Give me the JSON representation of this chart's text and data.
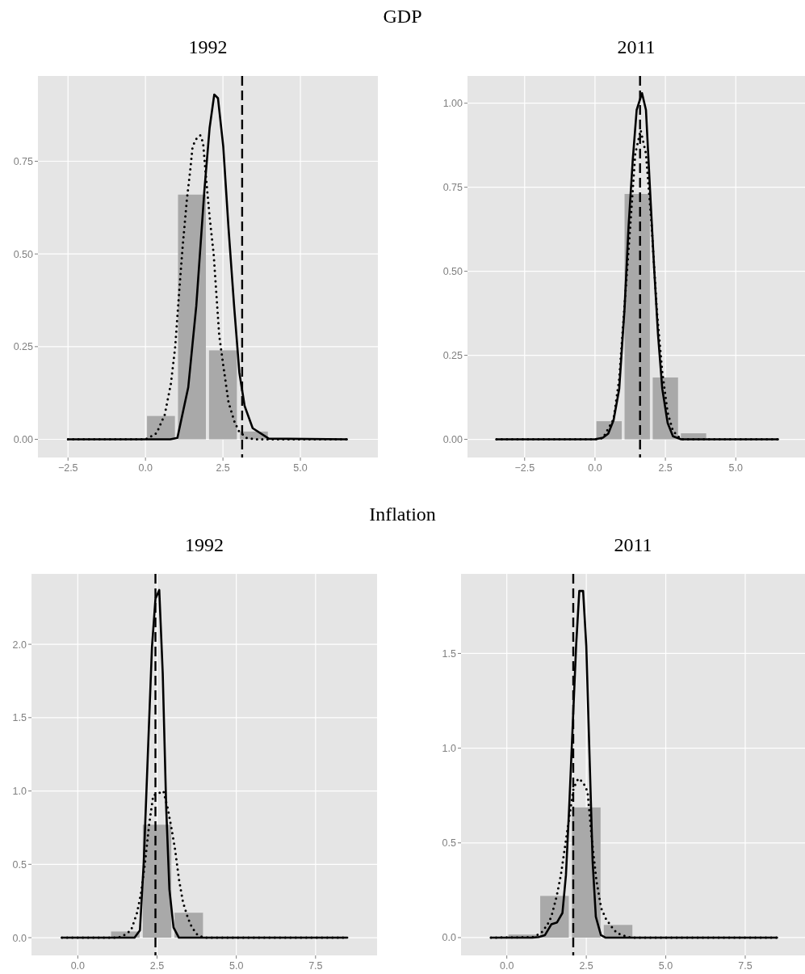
{
  "chart_data": [
    {
      "type": "histogram",
      "title": "1992",
      "annotations": [
        "GDP"
      ],
      "bins": [
        0,
        1,
        2,
        3,
        4
      ],
      "values": [
        0.063,
        0.66,
        0.24,
        0.021
      ],
      "color": "#a9a9a9",
      "xlim": [
        -3.47,
        7.5
      ],
      "ylim": [
        -0.049,
        0.98
      ],
      "xticks": [
        {
          "value": -2.5,
          "label": "−2.5"
        },
        {
          "value": 0,
          "label": "0.0"
        },
        {
          "value": 2.5,
          "label": "2.5"
        },
        {
          "value": 5,
          "label": "5.0"
        }
      ],
      "yticks": [
        {
          "value": 0,
          "label": "0.00"
        },
        {
          "value": 0.25,
          "label": "0.25"
        },
        {
          "value": 0.5,
          "label": "0.50"
        },
        {
          "value": 0.75,
          "label": "0.75"
        }
      ],
      "grid": true,
      "series": [
        {
          "type": "line",
          "color": "#000000",
          "line_style": "solid",
          "x": [
            -2.5,
            0.8,
            1.03,
            1.38,
            1.64,
            1.9,
            2.07,
            2.22,
            2.34,
            2.51,
            2.68,
            2.86,
            3.03,
            3.2,
            3.46,
            3.98,
            6.5
          ],
          "values": [
            0,
            0,
            0.004,
            0.14,
            0.36,
            0.67,
            0.84,
            0.93,
            0.92,
            0.79,
            0.57,
            0.36,
            0.18,
            0.09,
            0.03,
            0.002,
            0
          ]
        },
        {
          "type": "line",
          "color": "#000000",
          "line_style": "dotted",
          "x": [
            -2.5,
            0,
            0.1,
            0.36,
            0.62,
            0.82,
            0.96,
            1.08,
            1.2,
            1.34,
            1.45,
            1.52,
            1.64,
            1.77,
            1.86,
            1.94,
            2.07,
            2.2,
            2.29,
            2.38,
            2.51,
            2.68,
            2.87,
            3.01,
            3.25,
            3.55,
            6.5
          ],
          "values": [
            0,
            0,
            0.004,
            0.017,
            0.066,
            0.15,
            0.25,
            0.39,
            0.52,
            0.65,
            0.73,
            0.79,
            0.81,
            0.82,
            0.8,
            0.72,
            0.6,
            0.5,
            0.39,
            0.28,
            0.2,
            0.1,
            0.048,
            0.023,
            0.004,
            0,
            0
          ]
        }
      ],
      "ref_lines": [
        {
          "axis": "x",
          "value": 3.12,
          "color": "#000000",
          "line_style": "dashed"
        }
      ]
    },
    {
      "type": "histogram",
      "title": "2011",
      "bins": [
        0,
        1,
        2,
        3,
        4
      ],
      "values": [
        0.054,
        0.73,
        0.184,
        0.018
      ],
      "color": "#a9a9a9",
      "xlim": [
        -4.53,
        7.46
      ],
      "ylim": [
        -0.054,
        1.081
      ],
      "xticks": [
        {
          "value": -2.5,
          "label": "−2.5"
        },
        {
          "value": 0,
          "label": "0.0"
        },
        {
          "value": 2.5,
          "label": "2.5"
        },
        {
          "value": 5,
          "label": "5.0"
        }
      ],
      "yticks": [
        {
          "value": 0,
          "label": "0.00"
        },
        {
          "value": 0.25,
          "label": "0.25"
        },
        {
          "value": 0.5,
          "label": "0.50"
        },
        {
          "value": 0.75,
          "label": "0.75"
        },
        {
          "value": 1,
          "label": "1.00"
        }
      ],
      "grid": true,
      "series": [
        {
          "type": "line",
          "color": "#000000",
          "line_style": "solid",
          "x": [
            -3.5,
            0,
            0.28,
            0.47,
            0.66,
            0.86,
            1.05,
            1.19,
            1.34,
            1.48,
            1.67,
            1.81,
            1.95,
            2.1,
            2.24,
            2.39,
            2.58,
            2.77,
            3.06,
            6.5
          ],
          "values": [
            0,
            0,
            0.005,
            0.017,
            0.057,
            0.15,
            0.39,
            0.63,
            0.83,
            0.98,
            1.03,
            0.98,
            0.75,
            0.51,
            0.31,
            0.15,
            0.049,
            0.009,
            0,
            0
          ]
        },
        {
          "type": "line",
          "color": "#000000",
          "line_style": "dotted",
          "x": [
            -3.5,
            0,
            0.28,
            0.66,
            0.86,
            1.05,
            1.24,
            1.43,
            1.62,
            1.81,
            2.0,
            2.2,
            2.39,
            2.58,
            2.77,
            3.06,
            6.5
          ],
          "values": [
            0,
            0,
            0.004,
            0.06,
            0.18,
            0.4,
            0.62,
            0.85,
            0.92,
            0.85,
            0.65,
            0.38,
            0.2,
            0.08,
            0.025,
            0,
            0
          ]
        }
      ],
      "ref_lines": [
        {
          "axis": "x",
          "value": 1.6,
          "color": "#000000",
          "line_style": "dashed"
        }
      ]
    },
    {
      "type": "histogram",
      "title": "1992",
      "annotations": [
        "Inflation"
      ],
      "bins": [
        1,
        2,
        3,
        4
      ],
      "values": [
        0.042,
        0.77,
        0.17
      ],
      "color": "#a9a9a9",
      "xlim": [
        -1.46,
        9.44
      ],
      "ylim": [
        -0.121,
        2.48
      ],
      "xticks": [
        {
          "value": 0,
          "label": "0.0"
        },
        {
          "value": 2.5,
          "label": "2.5"
        },
        {
          "value": 5,
          "label": "5.0"
        },
        {
          "value": 7.5,
          "label": "7.5"
        }
      ],
      "yticks": [
        {
          "value": 0,
          "label": "0.0"
        },
        {
          "value": 0.5,
          "label": "0.5"
        },
        {
          "value": 1,
          "label": "1.0"
        },
        {
          "value": 1.5,
          "label": "1.5"
        },
        {
          "value": 2,
          "label": "2.0"
        }
      ],
      "grid": true,
      "series": [
        {
          "type": "line",
          "color": "#000000",
          "line_style": "solid",
          "x": [
            -0.5,
            1.79,
            1.96,
            2.08,
            2.21,
            2.34,
            2.45,
            2.57,
            2.68,
            2.79,
            2.89,
            3.02,
            3.19,
            8.5
          ],
          "values": [
            0,
            0,
            0.05,
            0.51,
            1.25,
            1.98,
            2.31,
            2.37,
            1.8,
            0.88,
            0.33,
            0.07,
            0,
            0
          ]
        },
        {
          "type": "line",
          "color": "#000000",
          "line_style": "dotted",
          "x": [
            -0.5,
            1.2,
            1.4,
            1.68,
            1.87,
            2.0,
            2.12,
            2.25,
            2.38,
            2.5,
            2.7,
            2.84,
            2.96,
            3.07,
            3.19,
            3.32,
            3.48,
            3.6,
            3.78,
            4.0,
            8.5
          ],
          "values": [
            0,
            0,
            0.007,
            0.05,
            0.17,
            0.31,
            0.51,
            0.77,
            0.97,
            0.98,
            1.0,
            0.88,
            0.74,
            0.6,
            0.4,
            0.24,
            0.13,
            0.07,
            0.017,
            0,
            0
          ]
        }
      ],
      "ref_lines": [
        {
          "axis": "x",
          "value": 2.45,
          "color": "#000000",
          "line_style": "dashed"
        }
      ]
    },
    {
      "type": "histogram",
      "title": "2011",
      "bins": [
        0,
        1,
        2,
        3,
        4
      ],
      "values": [
        0.016,
        0.22,
        0.687,
        0.067
      ],
      "color": "#a9a9a9",
      "xlim": [
        -1.44,
        9.38
      ],
      "ylim": [
        -0.094,
        1.92
      ],
      "xticks": [
        {
          "value": 0,
          "label": "0.0"
        },
        {
          "value": 2.5,
          "label": "2.5"
        },
        {
          "value": 5,
          "label": "5.0"
        },
        {
          "value": 7.5,
          "label": "7.5"
        }
      ],
      "yticks": [
        {
          "value": 0,
          "label": "0.0"
        },
        {
          "value": 0.5,
          "label": "0.5"
        },
        {
          "value": 1,
          "label": "1.0"
        },
        {
          "value": 1.5,
          "label": "1.5"
        }
      ],
      "grid": true,
      "series": [
        {
          "type": "line",
          "color": "#000000",
          "line_style": "solid",
          "x": [
            -0.5,
            0.8,
            1.0,
            1.2,
            1.4,
            1.58,
            1.75,
            1.86,
            1.96,
            2.07,
            2.18,
            2.28,
            2.4,
            2.5,
            2.6,
            2.7,
            2.8,
            2.96,
            3.1,
            8.5
          ],
          "values": [
            0,
            0,
            0.003,
            0.013,
            0.07,
            0.08,
            0.13,
            0.33,
            0.68,
            1.11,
            1.54,
            1.83,
            1.83,
            1.54,
            0.97,
            0.4,
            0.11,
            0.013,
            0,
            0
          ]
        },
        {
          "type": "line",
          "color": "#000000",
          "line_style": "dotted",
          "x": [
            -0.5,
            0.8,
            1.08,
            1.27,
            1.4,
            1.57,
            1.7,
            1.83,
            1.96,
            2.1,
            2.25,
            2.4,
            2.54,
            2.68,
            2.82,
            2.97,
            3.12,
            3.3,
            3.46,
            3.68,
            3.9,
            8.5
          ],
          "values": [
            0,
            0.002,
            0.024,
            0.066,
            0.11,
            0.22,
            0.33,
            0.48,
            0.63,
            0.79,
            0.84,
            0.82,
            0.77,
            0.51,
            0.3,
            0.155,
            0.098,
            0.056,
            0.024,
            0.01,
            0,
            0
          ]
        }
      ],
      "ref_lines": [
        {
          "axis": "x",
          "value": 2.09,
          "color": "#000000",
          "line_style": "dashed"
        }
      ]
    }
  ]
}
